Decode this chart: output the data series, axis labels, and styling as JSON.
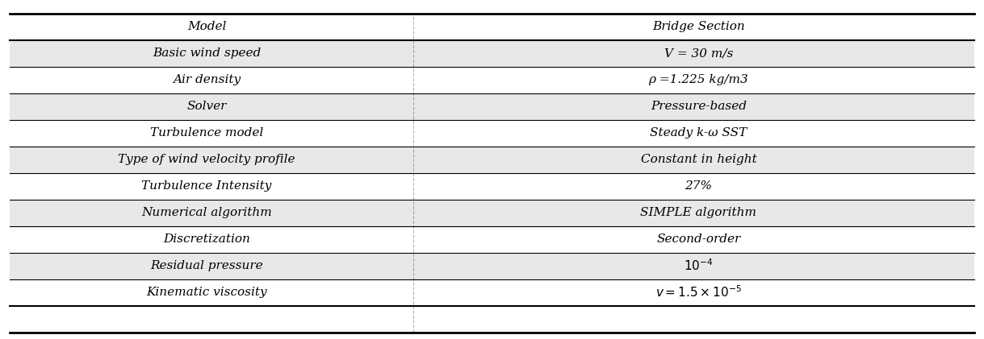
{
  "rows": [
    {
      "label": "Model",
      "value": "Bridge Section",
      "shaded": false,
      "value_math": false
    },
    {
      "label": "Basic wind speed",
      "value": "V = 30 m/s",
      "shaded": true,
      "value_math": true,
      "parts": [
        {
          "text": "V",
          "style": "italic"
        },
        {
          "text": " = 30 m/s",
          "style": "normal"
        }
      ]
    },
    {
      "label": "Air density",
      "value": "ρ =1.225 kg/m3",
      "shaded": false,
      "value_math": true,
      "parts": [
        {
          "text": "ρ",
          "style": "italic"
        },
        {
          "text": " =1.225 kg/m3",
          "style": "normal"
        }
      ]
    },
    {
      "label": "Solver",
      "value": "Pressure-based",
      "shaded": true,
      "value_math": false
    },
    {
      "label": "Turbulence model",
      "value": "Steady k-ω SST",
      "shaded": false,
      "value_math": false
    },
    {
      "label": "Type of wind velocity profile",
      "value": "Constant in height",
      "shaded": true,
      "value_math": false
    },
    {
      "label": "Turbulence Intensity",
      "value": "27%",
      "shaded": false,
      "value_math": false
    },
    {
      "label": "Numerical algorithm",
      "value": "SIMPLE algorithm",
      "shaded": true,
      "value_math": false
    },
    {
      "label": "Discretization",
      "value": "Second-order",
      "shaded": false,
      "value_math": false
    },
    {
      "label": "Residual pressure",
      "value": "10⁻⁴",
      "shaded": true,
      "value_math": true,
      "superscript": true
    },
    {
      "label": "Kinematic viscosity",
      "value": "v = 1.5 × 10⁻⁵",
      "shaded": false,
      "value_math": true,
      "superscript": true
    }
  ],
  "col_split": 0.42,
  "shaded_color": "#e8e8e8",
  "white_color": "#ffffff",
  "line_color": "#000000",
  "text_color": "#000000",
  "font_size": 11,
  "header_font_size": 11
}
